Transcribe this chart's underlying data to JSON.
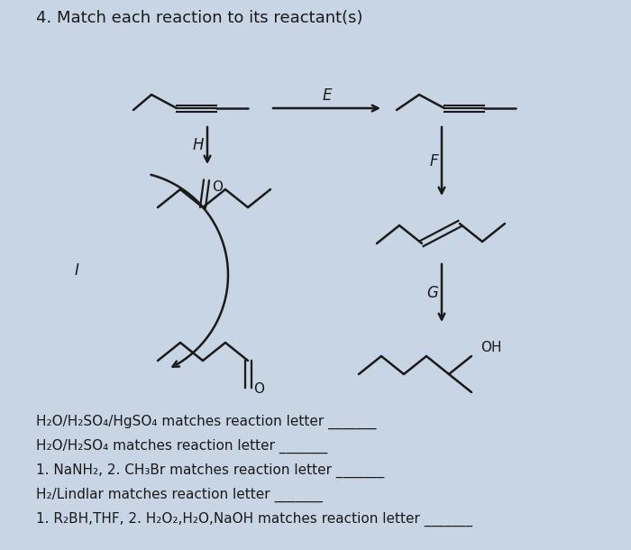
{
  "title": "4. Match each reaction to its reactant(s)",
  "background_color": "#c8d5e5",
  "text_color": "#1a1a1a",
  "title_fontsize": 13,
  "lines": [
    "H₂O/H₂SO₄/HgSO₄ matches reaction letter _______",
    "H₂O/H₂SO₄ matches reaction letter _______",
    "1. NaNH₂, 2. CH₃Br matches reaction letter _______",
    "H₂/Lindlar matches reaction letter _______",
    "1. R₂BH,THF, 2. H₂O₂,H₂O,NaOH matches reaction letter _______"
  ]
}
